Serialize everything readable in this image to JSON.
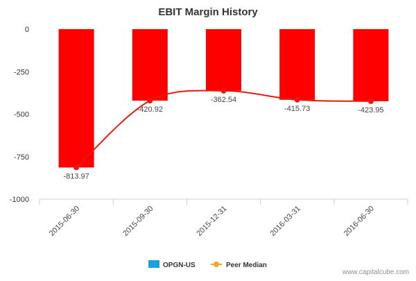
{
  "chart_data": {
    "type": "bar",
    "title": "EBIT Margin History",
    "categories": [
      "2015-06-30",
      "2015-09-30",
      "2015-12-31",
      "2016-03-31",
      "2016-06-30"
    ],
    "series": [
      {
        "name": "OPGN-US",
        "kind": "bar",
        "values": [
          -813.97,
          -420.92,
          -362.54,
          -415.73,
          -423.95
        ],
        "legend_color": "#1ba1e2",
        "bar_color": "#ff0000"
      },
      {
        "name": "Peer Median",
        "kind": "line-smooth",
        "values": [
          -813.97,
          -420.92,
          -362.54,
          -415.73,
          -423.95
        ],
        "color": "#e8190c",
        "legend_color": "#f5a623"
      }
    ],
    "data_labels": [
      "-813.97",
      "-420.92",
      "-362.54",
      "-415.73",
      "-423.95"
    ],
    "yticks": [
      0,
      -250,
      -500,
      -750,
      -1000
    ],
    "ylim": [
      -1000,
      0
    ],
    "xlabel": "",
    "ylabel": "",
    "grid": false,
    "legend_position": "bottom-center"
  },
  "credit": "www.capitalcube.com"
}
